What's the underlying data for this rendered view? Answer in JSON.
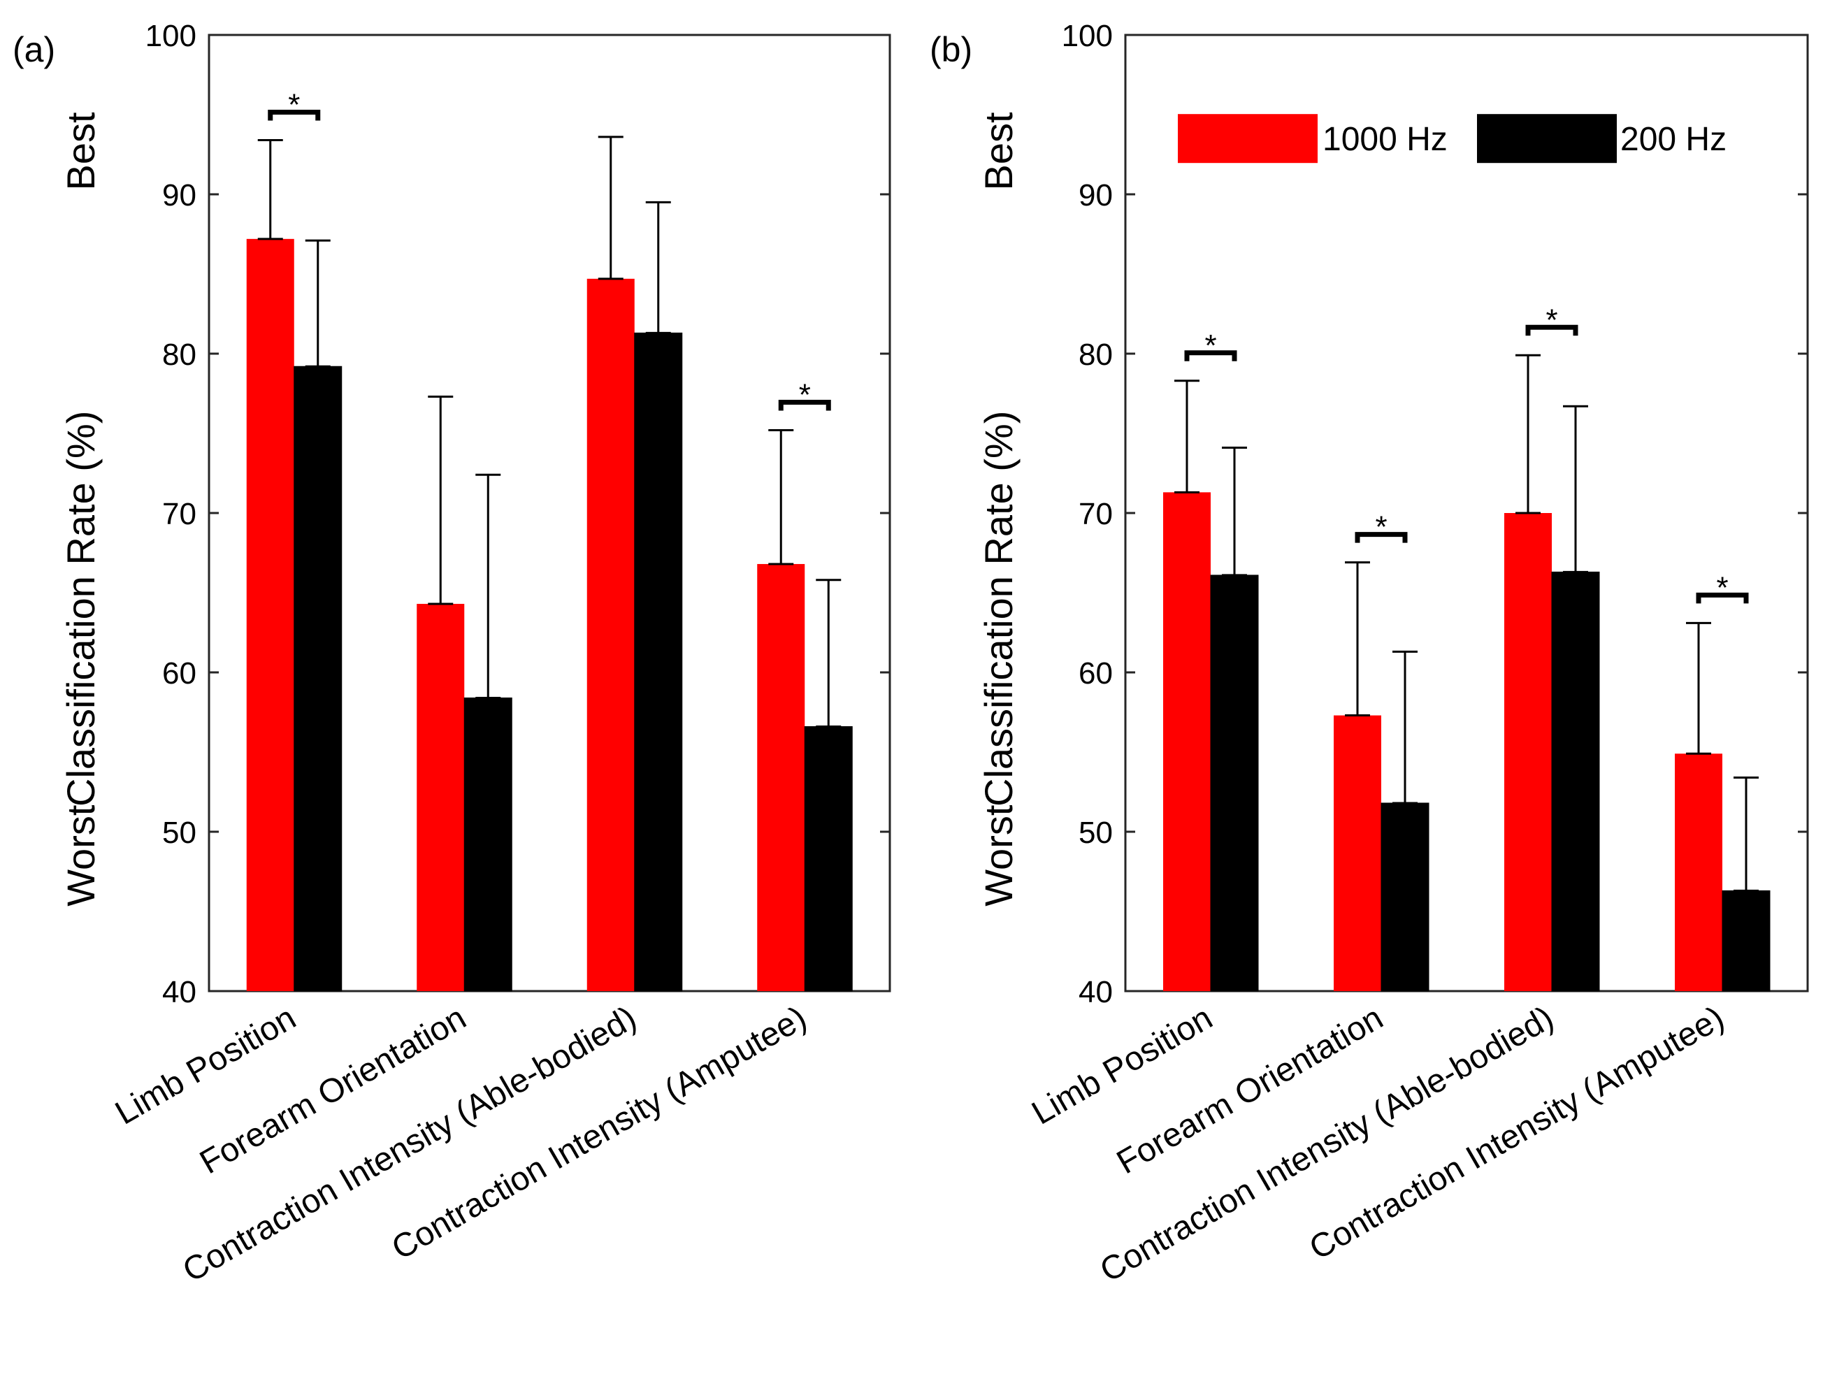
{
  "chart_data": [
    {
      "type": "bar",
      "panel_label": "(a)",
      "categories": [
        "Limb Position",
        "Forearm Orientation",
        "Contraction Intensity (Able-bodied)",
        "Contraction Intensity (Amputee)"
      ],
      "series": [
        {
          "name": "1000 Hz",
          "color": "#ff0000",
          "values": [
            87.2,
            64.3,
            84.7,
            66.8
          ],
          "errors": [
            6.2,
            13.0,
            8.9,
            8.4
          ]
        },
        {
          "name": "200 Hz",
          "color": "#000000",
          "values": [
            79.2,
            58.4,
            81.3,
            56.6
          ],
          "errors": [
            7.9,
            14.0,
            8.2,
            9.2
          ]
        }
      ],
      "significance": [
        {
          "category_index": 0,
          "label": "*"
        },
        {
          "category_index": 3,
          "label": "*"
        }
      ],
      "ylabel": "Classification Rate (%)",
      "ylabel_top": "Best",
      "ylabel_bottom": "Worst",
      "ylim": [
        40,
        100
      ],
      "yticks": [
        "40",
        "50",
        "60",
        "70",
        "80",
        "90",
        "100"
      ],
      "legend": false
    },
    {
      "type": "bar",
      "panel_label": "(b)",
      "categories": [
        "Limb Position",
        "Forearm Orientation",
        "Contraction Intensity (Able-bodied)",
        "Contraction Intensity (Amputee)"
      ],
      "series": [
        {
          "name": "1000 Hz",
          "color": "#ff0000",
          "values": [
            71.3,
            57.3,
            70.0,
            54.9
          ],
          "errors": [
            7.0,
            9.6,
            9.9,
            8.2
          ]
        },
        {
          "name": "200 Hz",
          "color": "#000000",
          "values": [
            66.1,
            51.8,
            66.3,
            46.3
          ],
          "errors": [
            8.0,
            9.5,
            10.4,
            7.1
          ]
        }
      ],
      "significance": [
        {
          "category_index": 0,
          "label": "*"
        },
        {
          "category_index": 1,
          "label": "*"
        },
        {
          "category_index": 2,
          "label": "*"
        },
        {
          "category_index": 3,
          "label": "*"
        }
      ],
      "ylabel": "Classification Rate (%)",
      "ylabel_top": "Best",
      "ylabel_bottom": "Worst",
      "ylim": [
        40,
        100
      ],
      "yticks": [
        "40",
        "50",
        "60",
        "70",
        "80",
        "90",
        "100"
      ],
      "legend": true,
      "legend_position": "top-right",
      "legend_labels": [
        "1000 Hz",
        "200 Hz"
      ]
    }
  ]
}
